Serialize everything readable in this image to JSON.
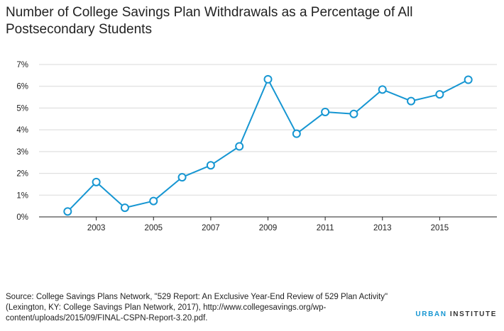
{
  "title": "Number of College Savings Plan Withdrawals as a Percentage of All Postsecondary Students",
  "source": "Source: College Savings Plans Network, \"529 Report: An Exclusive Year-End Review of 529 Plan Activity\" (Lexington, KY: College Savings Plan Network, 2017), http://www.collegesavings.org/wp-content/uploads/2015/09/FINAL-CSPN-Report-3.20.pdf.",
  "brand": {
    "urban": "URBAN",
    "institute": "INSTITUTE"
  },
  "colors": {
    "line": "#1696d2",
    "grid": "#d9d9d9",
    "axis": "#222222",
    "brand_blue": "#1696d2"
  },
  "chart_data": {
    "type": "line",
    "title": "Number of College Savings Plan Withdrawals as a Percentage of All Postsecondary Students",
    "xlabel": "",
    "ylabel": "",
    "x": [
      2002,
      2003,
      2004,
      2005,
      2006,
      2007,
      2008,
      2009,
      2010,
      2011,
      2012,
      2013,
      2014,
      2015,
      2016
    ],
    "series": [
      {
        "values": [
          0.25,
          1.6,
          0.42,
          0.73,
          1.82,
          2.37,
          3.24,
          6.32,
          3.82,
          4.82,
          4.73,
          5.85,
          5.32,
          5.63,
          6.3
        ]
      }
    ],
    "xlim": [
      2001,
      2017
    ],
    "ylim": [
      0,
      7
    ],
    "xticks": [
      2003,
      2005,
      2007,
      2009,
      2011,
      2013,
      2015
    ],
    "xtick_labels": [
      "2003",
      "2005",
      "2007",
      "2009",
      "2011",
      "2013",
      "2015"
    ],
    "yticks": [
      0,
      1,
      2,
      3,
      4,
      5,
      6,
      7
    ],
    "ytick_labels": [
      "0%",
      "1%",
      "2%",
      "3%",
      "4%",
      "5%",
      "6%",
      "7%"
    ],
    "grid": "horizontal",
    "legend": "none",
    "markers": "open-circle"
  }
}
